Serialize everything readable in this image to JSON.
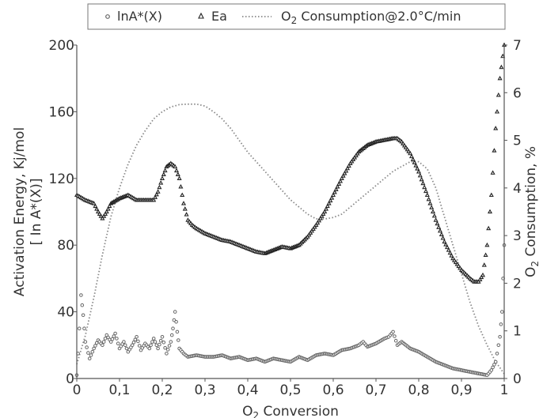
{
  "chart_data": {
    "type": "scatter",
    "title": "",
    "xlabel": {
      "pre": "O",
      "sub": "2",
      "post": " Conversion"
    },
    "ylabel_left": [
      "Activation Energy, Kj/mol",
      "[ In A*(X)]"
    ],
    "ylabel_right": {
      "pre": "O",
      "sub": "2",
      "post": " Consumption, %"
    },
    "xlim": [
      0,
      1
    ],
    "ylim_left": [
      0,
      200
    ],
    "ylim_right": [
      0,
      7
    ],
    "x_ticks": [
      "0",
      "0,1",
      "0,2",
      "0,3",
      "0,4",
      "0,5",
      "0,6",
      "0,7",
      "0,8",
      "0,9",
      "1"
    ],
    "y_left_ticks": [
      "0",
      "40",
      "80",
      "120",
      "160",
      "200"
    ],
    "y_right_ticks": [
      "0",
      "1",
      "2",
      "3",
      "4",
      "5",
      "6",
      "7"
    ],
    "grid": false,
    "legend_position": "top",
    "legend": [
      {
        "marker": "circle",
        "text": "lnA*(X)"
      },
      {
        "marker": "triangle",
        "text": "Ea"
      },
      {
        "marker": "dotted-line",
        "pre": "O",
        "sub": "2",
        "post": " Consumption@2.0°C/min"
      }
    ],
    "colors": {
      "lnA": "#666666",
      "Ea": "#222222",
      "O2": "#888888",
      "axis": "#555555"
    },
    "series": [
      {
        "name": "lnA*(X)",
        "axis": "left",
        "marker": "circle",
        "x": [
          0.0,
          0.003,
          0.006,
          0.01,
          0.015,
          0.02,
          0.03,
          0.04,
          0.05,
          0.06,
          0.07,
          0.08,
          0.09,
          0.1,
          0.11,
          0.12,
          0.13,
          0.14,
          0.15,
          0.16,
          0.17,
          0.18,
          0.19,
          0.2,
          0.21,
          0.22,
          0.225,
          0.23,
          0.235,
          0.24,
          0.25,
          0.26,
          0.28,
          0.3,
          0.32,
          0.34,
          0.36,
          0.38,
          0.4,
          0.42,
          0.44,
          0.46,
          0.48,
          0.5,
          0.52,
          0.54,
          0.56,
          0.58,
          0.6,
          0.62,
          0.64,
          0.66,
          0.67,
          0.68,
          0.7,
          0.72,
          0.73,
          0.74,
          0.75,
          0.76,
          0.78,
          0.8,
          0.82,
          0.84,
          0.86,
          0.88,
          0.9,
          0.92,
          0.94,
          0.96,
          0.97,
          0.98,
          0.99,
          0.995,
          1.0
        ],
        "y": [
          2,
          15,
          30,
          50,
          38,
          22,
          12,
          18,
          23,
          20,
          26,
          22,
          27,
          18,
          22,
          16,
          20,
          25,
          17,
          21,
          18,
          24,
          18,
          25,
          15,
          22,
          30,
          40,
          28,
          18,
          15,
          13,
          14,
          13,
          13,
          14,
          12,
          13,
          11,
          12,
          10,
          12,
          11,
          10,
          13,
          11,
          14,
          15,
          14,
          17,
          18,
          20,
          22,
          19,
          21,
          24,
          25,
          28,
          20,
          22,
          18,
          16,
          13,
          10,
          8,
          6,
          5,
          4,
          3,
          2,
          5,
          10,
          25,
          40,
          80
        ]
      },
      {
        "name": "Ea",
        "axis": "left",
        "marker": "triangle",
        "x": [
          0.0,
          0.02,
          0.04,
          0.05,
          0.06,
          0.07,
          0.08,
          0.1,
          0.12,
          0.14,
          0.16,
          0.18,
          0.19,
          0.2,
          0.21,
          0.22,
          0.23,
          0.24,
          0.25,
          0.26,
          0.27,
          0.28,
          0.3,
          0.32,
          0.34,
          0.36,
          0.38,
          0.4,
          0.42,
          0.44,
          0.46,
          0.48,
          0.5,
          0.52,
          0.54,
          0.56,
          0.58,
          0.6,
          0.62,
          0.64,
          0.66,
          0.68,
          0.7,
          0.72,
          0.74,
          0.75,
          0.76,
          0.78,
          0.8,
          0.82,
          0.84,
          0.86,
          0.88,
          0.9,
          0.92,
          0.93,
          0.94,
          0.95,
          0.96,
          0.97,
          0.98,
          0.99,
          1.0
        ],
        "y": [
          110,
          107,
          105,
          100,
          96,
          100,
          105,
          108,
          110,
          107,
          107,
          107,
          112,
          120,
          127,
          129,
          127,
          120,
          105,
          95,
          92,
          90,
          87,
          85,
          83,
          82,
          80,
          78,
          76,
          75,
          77,
          79,
          78,
          80,
          85,
          92,
          100,
          110,
          120,
          129,
          136,
          140,
          142,
          143,
          144,
          144,
          142,
          135,
          124,
          110,
          95,
          82,
          72,
          65,
          60,
          58,
          58,
          62,
          80,
          110,
          150,
          180,
          200
        ]
      },
      {
        "name": "O2 Consumption@2.0°C/min",
        "axis": "right",
        "marker": "dotted-line",
        "x": [
          0.0,
          0.02,
          0.04,
          0.06,
          0.08,
          0.1,
          0.12,
          0.14,
          0.16,
          0.18,
          0.2,
          0.22,
          0.24,
          0.26,
          0.28,
          0.3,
          0.32,
          0.34,
          0.36,
          0.38,
          0.4,
          0.42,
          0.44,
          0.46,
          0.48,
          0.5,
          0.52,
          0.54,
          0.56,
          0.58,
          0.6,
          0.62,
          0.64,
          0.66,
          0.68,
          0.7,
          0.72,
          0.74,
          0.76,
          0.78,
          0.8,
          0.82,
          0.84,
          0.86,
          0.88,
          0.9,
          0.92,
          0.94,
          0.96,
          0.98,
          1.0
        ],
        "y": [
          0.3,
          0.9,
          1.7,
          2.6,
          3.4,
          4.0,
          4.5,
          4.9,
          5.2,
          5.45,
          5.6,
          5.7,
          5.75,
          5.76,
          5.76,
          5.72,
          5.6,
          5.45,
          5.25,
          5.0,
          4.75,
          4.55,
          4.35,
          4.15,
          3.95,
          3.75,
          3.6,
          3.45,
          3.35,
          3.35,
          3.38,
          3.45,
          3.6,
          3.75,
          3.9,
          4.05,
          4.2,
          4.35,
          4.45,
          4.55,
          4.55,
          4.4,
          4.0,
          3.4,
          2.8,
          2.2,
          1.6,
          1.1,
          0.7,
          0.35,
          0.1
        ]
      }
    ]
  }
}
